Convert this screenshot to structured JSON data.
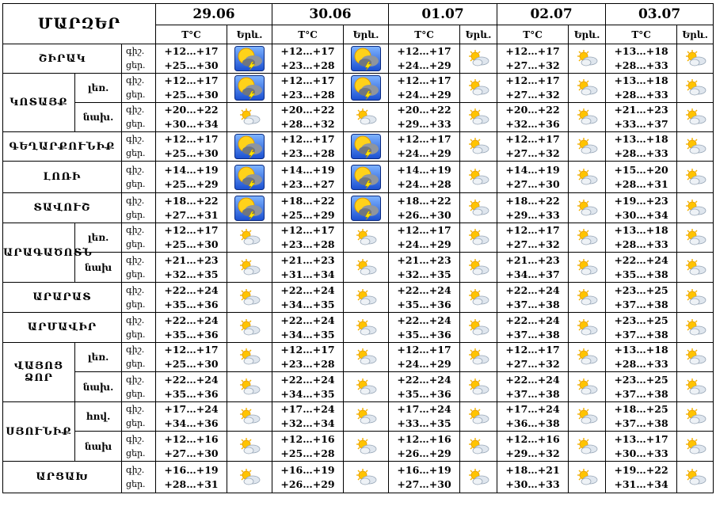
{
  "header": {
    "region_title": "ՄԱՐԶԵՐ",
    "temp_label": "T°C",
    "weather_label": "Երև."
  },
  "dates": [
    "29.06",
    "30.06",
    "01.07",
    "02.07",
    "03.07"
  ],
  "labels": {
    "night": "գիշ.",
    "day": "ցեր.",
    "day_alt": "ցեր."
  },
  "rows": [
    {
      "region": "ՇԻՐԱԿ",
      "sub": "",
      "night_label": "գիշ.",
      "day_label": "ցեր.",
      "cells": [
        {
          "night": "+12…+17",
          "day": "+25…+30",
          "icon": "storm-icon"
        },
        {
          "night": "+12…+17",
          "day": "+23…+28",
          "icon": "storm-icon"
        },
        {
          "night": "+12…+17",
          "day": "+24…+29",
          "icon": "partly-cloudy-icon"
        },
        {
          "night": "+12…+17",
          "day": "+27…+32",
          "icon": "partly-cloudy-icon"
        },
        {
          "night": "+13…+18",
          "day": "+28…+33",
          "icon": "partly-cloudy-icon"
        }
      ]
    },
    {
      "region": "ԿՈՏԱՅՔ",
      "sub": "լեռ.",
      "night_label": "գիշ.",
      "day_label": "ցեր.",
      "cells": [
        {
          "night": "+12…+17",
          "day": "+25…+30",
          "icon": "storm-icon"
        },
        {
          "night": "+12…+17",
          "day": "+23…+28",
          "icon": "storm-icon"
        },
        {
          "night": "+12…+17",
          "day": "+24…+29",
          "icon": "partly-cloudy-icon"
        },
        {
          "night": "+12…+17",
          "day": "+27…+32",
          "icon": "partly-cloudy-icon"
        },
        {
          "night": "+13…+18",
          "day": "+28…+33",
          "icon": "partly-cloudy-icon"
        }
      ]
    },
    {
      "region": "",
      "sub": "նախ.",
      "night_label": "գիշ.",
      "day_label": "ցեր.",
      "cells": [
        {
          "night": "+20…+22",
          "day": "+30…+34",
          "icon": "partly-cloudy-icon"
        },
        {
          "night": "+20…+22",
          "day": "+28…+32",
          "icon": "partly-cloudy-icon"
        },
        {
          "night": "+20…+22",
          "day": "+29…+33",
          "icon": "partly-cloudy-icon"
        },
        {
          "night": "+20…+22",
          "day": "+32…+36",
          "icon": "partly-cloudy-icon"
        },
        {
          "night": "+21…+23",
          "day": "+33…+37",
          "icon": "partly-cloudy-icon"
        }
      ]
    },
    {
      "region": "ԳԵՂԱՐՔՈՒՆԻՔ",
      "sub": "",
      "night_label": "գիշ.",
      "day_label": "ցեր.",
      "cells": [
        {
          "night": "+12…+17",
          "day": "+25…+30",
          "icon": "storm-icon"
        },
        {
          "night": "+12…+17",
          "day": "+23…+28",
          "icon": "storm-icon"
        },
        {
          "night": "+12…+17",
          "day": "+24…+29",
          "icon": "partly-cloudy-icon"
        },
        {
          "night": "+12…+17",
          "day": "+27…+32",
          "icon": "partly-cloudy-icon"
        },
        {
          "night": "+13…+18",
          "day": "+28…+33",
          "icon": "partly-cloudy-icon"
        }
      ]
    },
    {
      "region": "ԼՈՌԻ",
      "sub": "",
      "night_label": "գիշ.",
      "day_label": "ցեր.",
      "cells": [
        {
          "night": "+14…+19",
          "day": "+25…+29",
          "icon": "storm-icon"
        },
        {
          "night": "+14…+19",
          "day": "+23…+27",
          "icon": "storm-icon"
        },
        {
          "night": "+14…+19",
          "day": "+24…+28",
          "icon": "partly-cloudy-icon"
        },
        {
          "night": "+14…+19",
          "day": "+27…+30",
          "icon": "partly-cloudy-icon"
        },
        {
          "night": "+15…+20",
          "day": "+28…+31",
          "icon": "partly-cloudy-icon"
        }
      ]
    },
    {
      "region": "ՏԱՎՈՒՇ",
      "sub": "",
      "night_label": "գիշ.",
      "day_label": "ցեր.",
      "cells": [
        {
          "night": "+18…+22",
          "day": "+27…+31",
          "icon": "storm-icon"
        },
        {
          "night": "+18…+22",
          "day": "+25…+29",
          "icon": "storm-icon"
        },
        {
          "night": "+18…+22",
          "day": "+26…+30",
          "icon": "partly-cloudy-icon"
        },
        {
          "night": "+18…+22",
          "day": "+29…+33",
          "icon": "partly-cloudy-icon"
        },
        {
          "night": "+19…+23",
          "day": "+30…+34",
          "icon": "partly-cloudy-icon"
        }
      ]
    },
    {
      "region": "ԱՐԱԳԱԾՈՏՆ",
      "sub": "լեռ.",
      "night_label": "գիշ.",
      "day_label": "ցեր.",
      "cells": [
        {
          "night": "+12…+17",
          "day": "+25…+30",
          "icon": "partly-cloudy-icon"
        },
        {
          "night": "+12…+17",
          "day": "+23…+28",
          "icon": "partly-cloudy-icon"
        },
        {
          "night": "+12…+17",
          "day": "+24…+29",
          "icon": "partly-cloudy-icon"
        },
        {
          "night": "+12…+17",
          "day": "+27…+32",
          "icon": "partly-cloudy-icon"
        },
        {
          "night": "+13…+18",
          "day": "+28…+33",
          "icon": "partly-cloudy-icon"
        }
      ]
    },
    {
      "region": "",
      "sub": "նախ",
      "night_label": "գիշ.",
      "day_label": "ցեր.",
      "cells": [
        {
          "night": "+21…+23",
          "day": "+32…+35",
          "icon": "partly-cloudy-icon"
        },
        {
          "night": "+21…+23",
          "day": "+31…+34",
          "icon": "partly-cloudy-icon"
        },
        {
          "night": "+21…+23",
          "day": "+32…+35",
          "icon": "partly-cloudy-icon"
        },
        {
          "night": "+21…+23",
          "day": "+34…+37",
          "icon": "partly-cloudy-icon"
        },
        {
          "night": "+22…+24",
          "day": "+35…+38",
          "icon": "partly-cloudy-icon"
        }
      ]
    },
    {
      "region": "ԱՐԱՐԱՏ",
      "sub": "",
      "night_label": "գիշ.",
      "day_label": "ցեր.",
      "cells": [
        {
          "night": "+22…+24",
          "day": "+35…+36",
          "icon": "partly-cloudy-icon"
        },
        {
          "night": "+22…+24",
          "day": "+34…+35",
          "icon": "partly-cloudy-icon"
        },
        {
          "night": "+22…+24",
          "day": "+35…+36",
          "icon": "partly-cloudy-icon"
        },
        {
          "night": "+22…+24",
          "day": "+37…+38",
          "icon": "partly-cloudy-icon"
        },
        {
          "night": "+23…+25",
          "day": "+37…+38",
          "icon": "partly-cloudy-icon"
        }
      ]
    },
    {
      "region": "ԱՐՄԱՎԻՐ",
      "sub": "",
      "night_label": "գիշ.",
      "day_label": "ցեր.",
      "cells": [
        {
          "night": "+22…+24",
          "day": "+35…+36",
          "icon": "partly-cloudy-icon"
        },
        {
          "night": "+22…+24",
          "day": "+34…+35",
          "icon": "partly-cloudy-icon"
        },
        {
          "night": "+22…+24",
          "day": "+35…+36",
          "icon": "partly-cloudy-icon"
        },
        {
          "night": "+22…+24",
          "day": "+37…+38",
          "icon": "partly-cloudy-icon"
        },
        {
          "night": "+23…+25",
          "day": "+37…+38",
          "icon": "partly-cloudy-icon"
        }
      ]
    },
    {
      "region": "ՎԱՅՈՑ ՁՈՐ",
      "sub": "լեռ.",
      "night_label": "գիշ.",
      "day_label": "ցեր.",
      "cells": [
        {
          "night": "+12…+17",
          "day": "+25…+30",
          "icon": "sunny-cloud-icon"
        },
        {
          "night": "+12…+17",
          "day": "+23…+28",
          "icon": "sunny-cloud-icon"
        },
        {
          "night": "+12…+17",
          "day": "+24…+29",
          "icon": "sunny-cloud-icon"
        },
        {
          "night": "+12…+17",
          "day": "+27…+32",
          "icon": "sunny-cloud-icon"
        },
        {
          "night": "+13…+18",
          "day": "+28…+33",
          "icon": "sunny-cloud-icon"
        }
      ]
    },
    {
      "region": "",
      "sub": "նախ.",
      "night_label": "գիշ.",
      "day_label": "ցեր.",
      "cells": [
        {
          "night": "+22…+24",
          "day": "+35…+36",
          "icon": "sunny-cloud-icon"
        },
        {
          "night": "+22…+24",
          "day": "+34…+35",
          "icon": "sunny-cloud-icon"
        },
        {
          "night": "+22…+24",
          "day": "+35…+36",
          "icon": "sunny-cloud-icon"
        },
        {
          "night": "+22…+24",
          "day": "+37…+38",
          "icon": "sunny-cloud-icon"
        },
        {
          "night": "+23…+25",
          "day": "+37…+38",
          "icon": "sunny-cloud-icon"
        }
      ]
    },
    {
      "region": "ՍՅՈՒՆԻՔ",
      "sub": "հով.",
      "night_label": "գիշ.",
      "day_label": "ցեր.",
      "cells": [
        {
          "night": "+17…+24",
          "day": "+34…+36",
          "icon": "partly-cloudy-icon"
        },
        {
          "night": "+17…+24",
          "day": "+32…+34",
          "icon": "partly-cloudy-icon"
        },
        {
          "night": "+17…+24",
          "day": "+33…+35",
          "icon": "partly-cloudy-icon"
        },
        {
          "night": "+17…+24",
          "day": "+36…+38",
          "icon": "partly-cloudy-icon"
        },
        {
          "night": "+18…+25",
          "day": "+37…+38",
          "icon": "partly-cloudy-icon"
        }
      ]
    },
    {
      "region": "",
      "sub": "նախ",
      "night_label": "գիշ.",
      "day_label": "ցեր.",
      "cells": [
        {
          "night": "+12…+16",
          "day": "+27…+30",
          "icon": "partly-cloudy-icon"
        },
        {
          "night": "+12…+16",
          "day": "+25…+28",
          "icon": "partly-cloudy-icon"
        },
        {
          "night": "+12…+16",
          "day": "+26…+29",
          "icon": "partly-cloudy-icon"
        },
        {
          "night": "+12…+16",
          "day": "+29…+32",
          "icon": "partly-cloudy-icon"
        },
        {
          "night": "+13…+17",
          "day": "+30…+33",
          "icon": "partly-cloudy-icon"
        }
      ]
    },
    {
      "region": "ԱՐՑԱԽ",
      "sub": "",
      "night_label": "գիշ.",
      "day_label": "ցեր.",
      "cells": [
        {
          "night": "+16…+19",
          "day": "+28…+31",
          "icon": "partly-cloudy-icon"
        },
        {
          "night": "+16…+19",
          "day": "+26…+29",
          "icon": "partly-cloudy-icon"
        },
        {
          "night": "+16…+19",
          "day": "+27…+30",
          "icon": "partly-cloudy-icon"
        },
        {
          "night": "+18…+21",
          "day": "+30…+33",
          "icon": "partly-cloudy-icon"
        },
        {
          "night": "+19…+22",
          "day": "+31…+34",
          "icon": "partly-cloudy-icon"
        }
      ]
    }
  ]
}
